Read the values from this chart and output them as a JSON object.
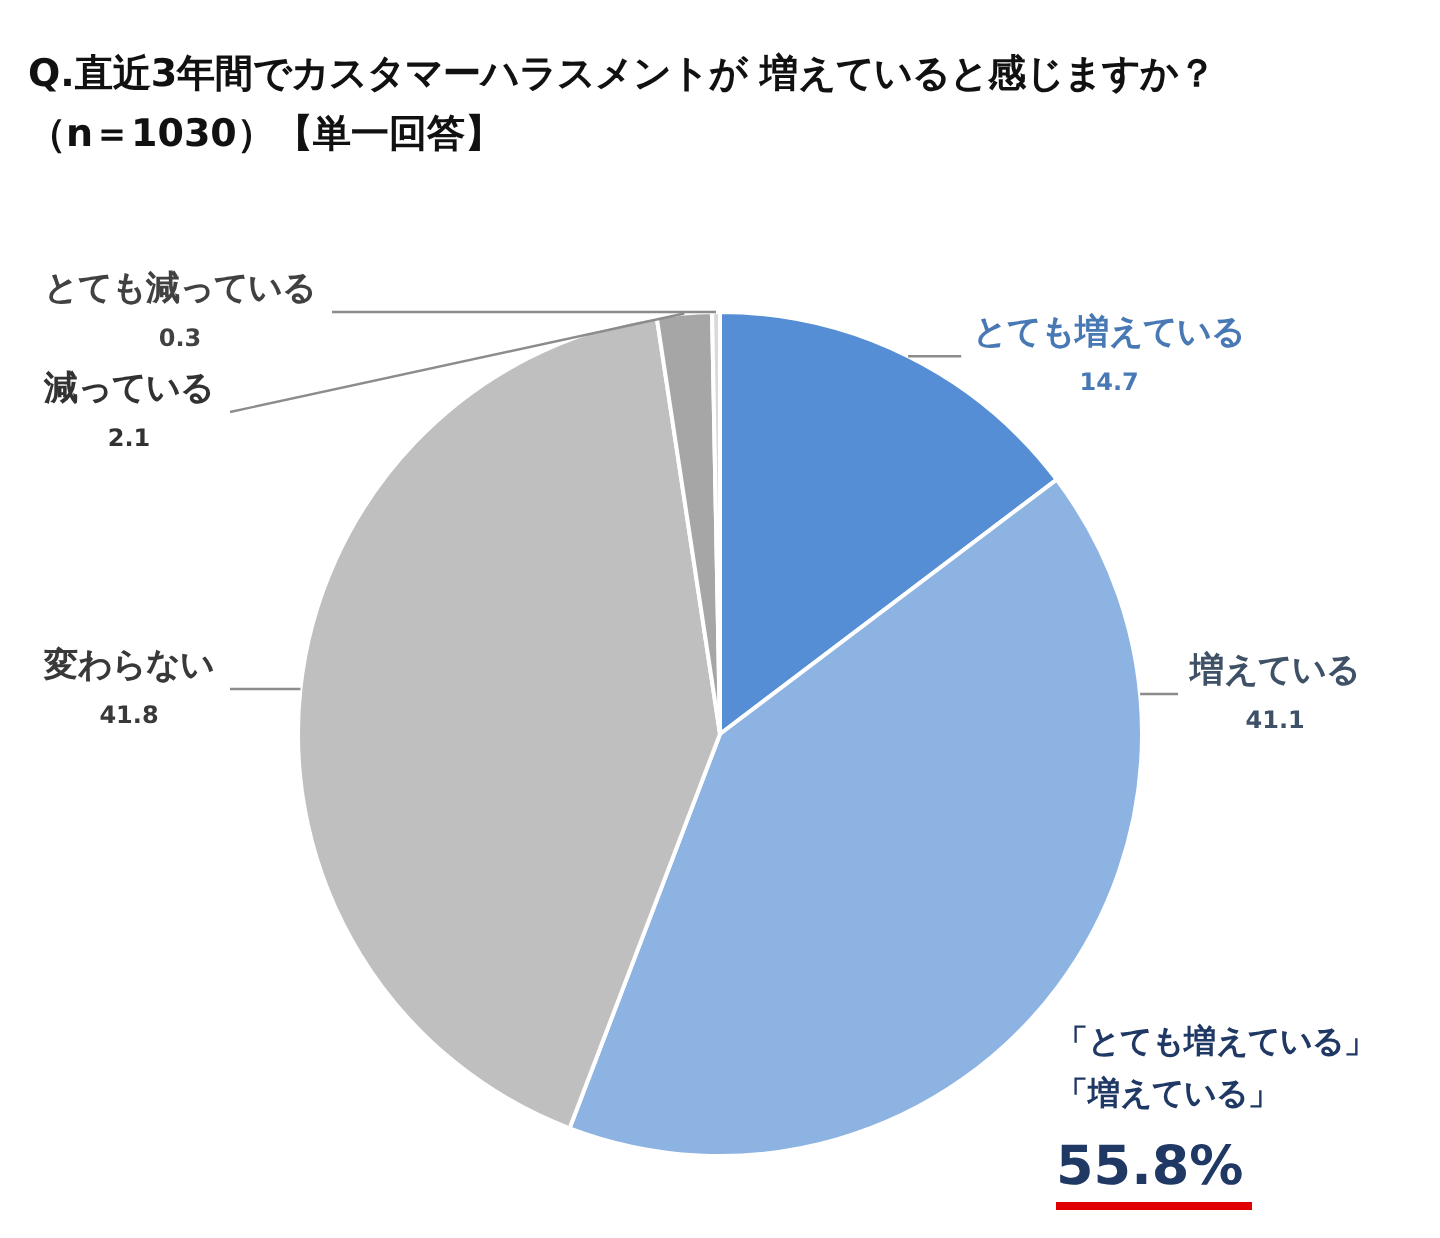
{
  "chart_data": {
    "type": "pie",
    "title": "Q.直近3年間でカスタマーハラスメントが 増えていると感じますか？",
    "subtitle": "（n＝1030）【単一回答】",
    "categories": [
      "とても増えている",
      "増えている",
      "変わらない",
      "減っている",
      "とても減っている"
    ],
    "values": [
      14.7,
      41.1,
      41.8,
      2.1,
      0.3
    ],
    "colors": [
      "#558ed5",
      "#8db3e2",
      "#bfbfbf",
      "#a6a6a6",
      "#d9d9d9"
    ],
    "data_labels": true,
    "annotations": [
      "「とても増えている」",
      "「増えている」",
      "55.8%"
    ]
  }
}
